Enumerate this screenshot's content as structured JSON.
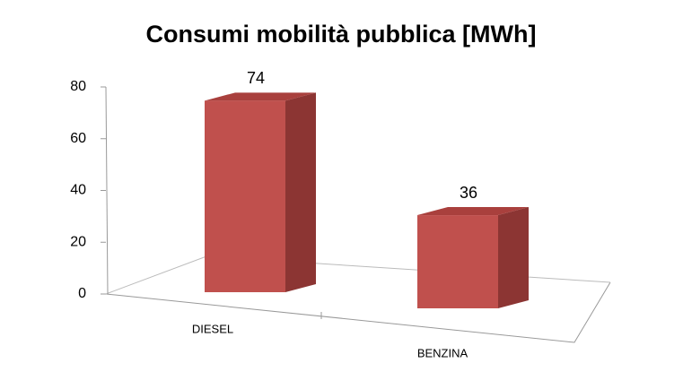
{
  "chart_data": {
    "type": "bar3d",
    "title": "Consumi mobilità pubblica [MWh]",
    "categories": [
      "DIESEL",
      "BENZINA"
    ],
    "values": [
      74,
      36
    ],
    "color": "#c0504d",
    "ylim": [
      0,
      80
    ],
    "yticks": [
      0,
      20,
      40,
      60,
      80
    ]
  }
}
